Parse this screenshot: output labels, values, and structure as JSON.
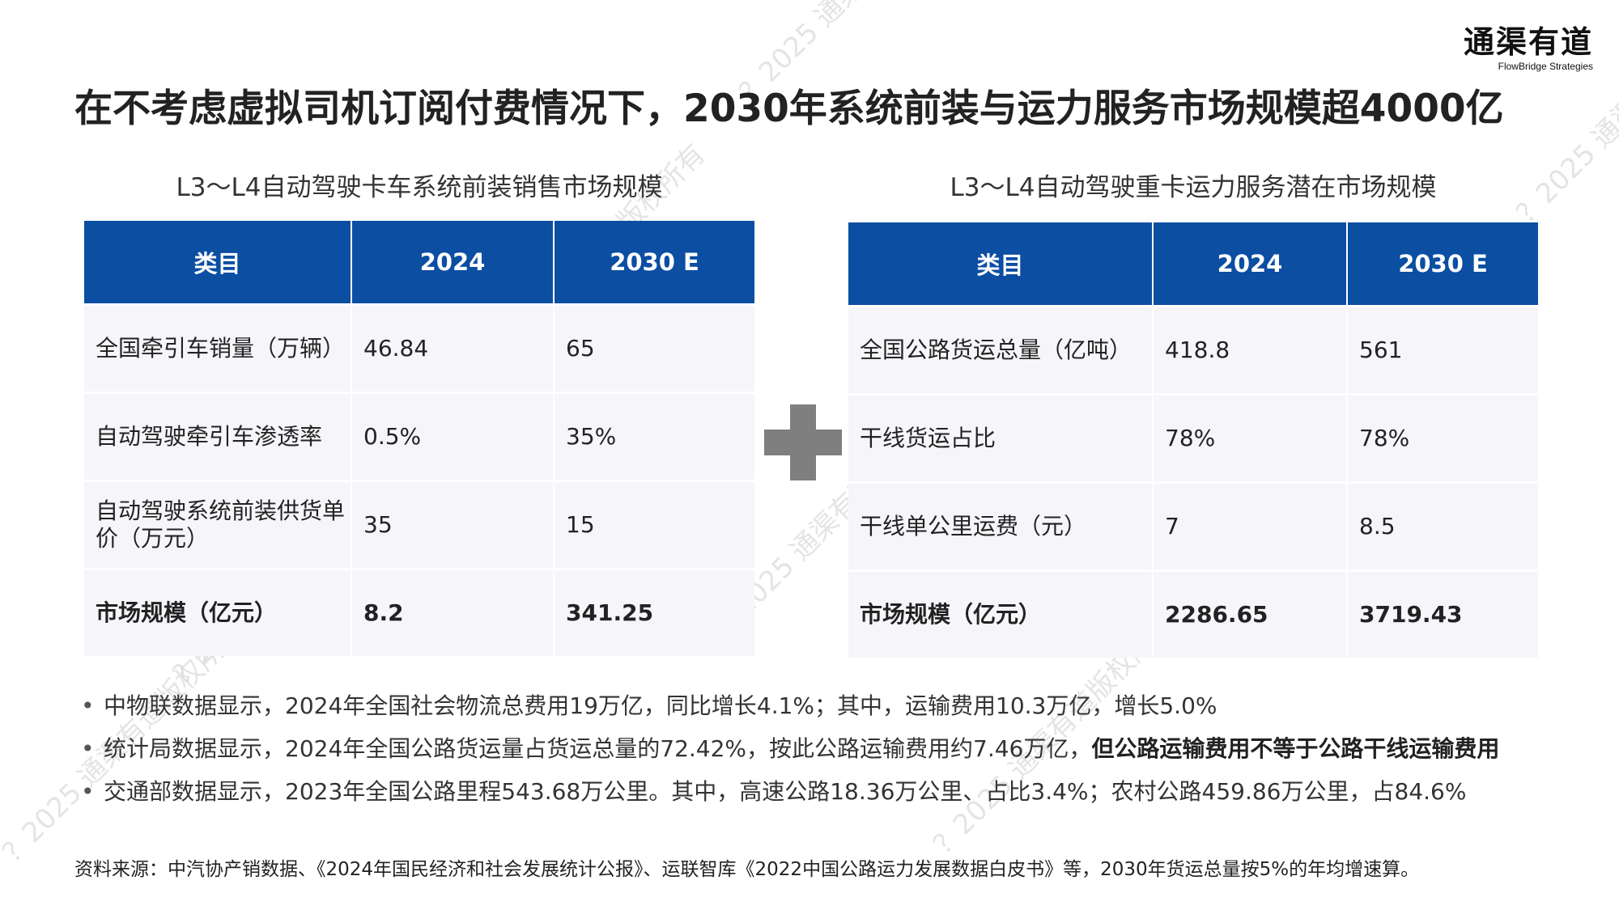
{
  "brand": {
    "name_cn": "通渠有道",
    "name_en": "FlowBridge Strategies"
  },
  "title": "在不考虑虚拟司机订阅付费情况下，2030年系统前装与运力服务市场规模超4000亿",
  "left_table": {
    "subtitle": "L3～L4自动驾驶卡车系统前装销售市场规模",
    "headers": [
      "类目",
      "2024",
      "2030 E"
    ],
    "rows": [
      {
        "label": "全国牵引车销量（万辆）",
        "v2024": "46.84",
        "v2030": "65"
      },
      {
        "label": "自动驾驶牵引车渗透率",
        "v2024": "0.5%",
        "v2030": "35%"
      },
      {
        "label": "自动驾驶系统前装供货单价（万元）",
        "v2024": "35",
        "v2030": "15"
      },
      {
        "label": "市场规模（亿元）",
        "v2024": "8.2",
        "v2030": "341.25"
      }
    ]
  },
  "right_table": {
    "subtitle": "L3～L4自动驾驶重卡运力服务潜在市场规模",
    "headers": [
      "类目",
      "2024",
      "2030 E"
    ],
    "rows": [
      {
        "label": "全国公路货运总量（亿吨）",
        "v2024": "418.8",
        "v2030": "561"
      },
      {
        "label": "干线货运占比",
        "v2024": "78%",
        "v2030": "78%"
      },
      {
        "label": "干线单公里运费（元）",
        "v2024": "7",
        "v2030": "8.5"
      },
      {
        "label": "市场规模（亿元）",
        "v2024": "2286.65",
        "v2030": "3719.43"
      }
    ]
  },
  "bullets": [
    {
      "text": "中物联数据显示，2024年全国社会物流总费用19万亿，同比增长4.1%；其中，运输费用10.3万亿，增长5.0%",
      "emphasis": ""
    },
    {
      "text": "统计局数据显示，2024年全国公路货运量占货运总量的72.42%，按此公路运输费用约7.46万亿，",
      "emphasis": "但公路运输费用不等于公路干线运输费用"
    },
    {
      "text": "交通部数据显示，2023年全国公路里程543.68万公里。其中，高速公路18.36万公里、占比3.4%；农村公路459.86万公里，占84.6%",
      "emphasis": ""
    }
  ],
  "bullet_marker": "•",
  "source": "资料来源：中汽协产销数据、《2024年国民经济和社会发展统计公报》、运联智库《2022中国公路运力发展数据白皮书》等，2030年货运总量按5%的年均增速算。",
  "watermark": "？2025 通渠有道版权所有",
  "colors": {
    "header_bg": "#0b4ea2",
    "cell_bg": "#f6f6fa",
    "plus": "#7f7f7f",
    "title": "#222222"
  }
}
